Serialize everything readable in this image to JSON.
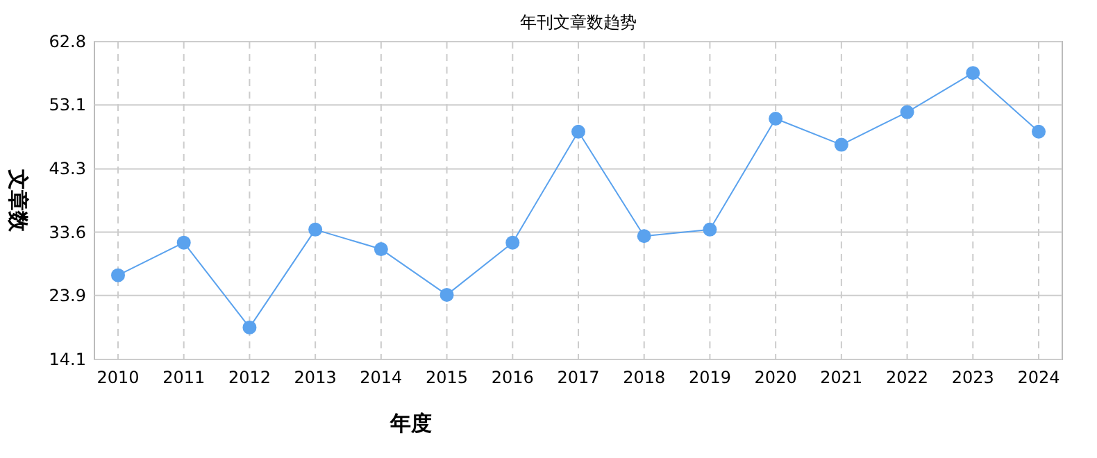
{
  "chart_data": {
    "type": "line",
    "title": "年刊文章数趋势",
    "xlabel": "年度",
    "ylabel": "文章数",
    "categories": [
      "2010",
      "2011",
      "2012",
      "2013",
      "2014",
      "2015",
      "2016",
      "2017",
      "2018",
      "2019",
      "2020",
      "2021",
      "2022",
      "2023",
      "2024"
    ],
    "series": [
      {
        "color": "#5aa2ee",
        "values": [
          27,
          32,
          19,
          34,
          31,
          24,
          32,
          49,
          33,
          34,
          51,
          47,
          52,
          58,
          49
        ]
      }
    ],
    "ylim": [
      14.1,
      62.8
    ],
    "yticks": [
      14.1,
      23.9,
      33.6,
      43.3,
      53.1,
      62.8
    ],
    "grid": true,
    "marker": "circle",
    "line_style": "solid"
  }
}
